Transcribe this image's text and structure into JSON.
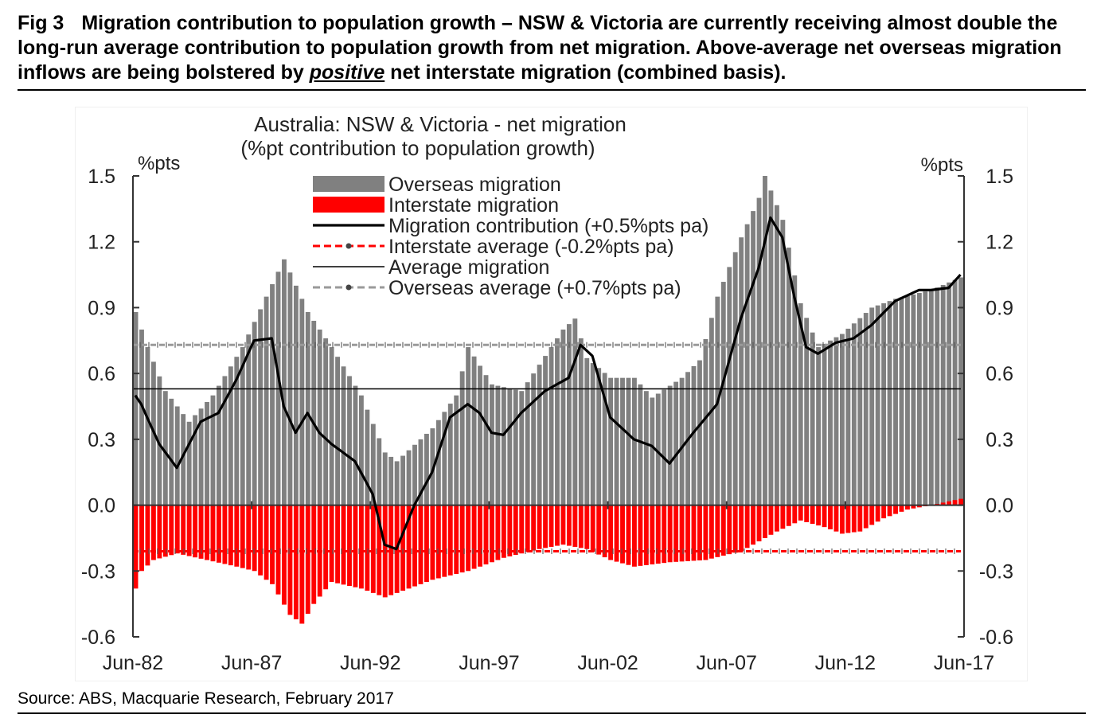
{
  "figure": {
    "label": "Fig 3",
    "title_part1": "Migration contribution to population growth – NSW & Victoria are currently receiving almost double the long-run average contribution to population growth from net migration. Above-average net overseas migration inflows are being bolstered by ",
    "title_emphasis": "positive",
    "title_part2": " net interstate migration (combined basis)."
  },
  "source": "Source: ABS,  Macquarie Research, February 2017",
  "colors": {
    "overseas": "#808080",
    "interstate": "#ff0000",
    "contribution": "#000000",
    "interstate_avg": "#ff0000",
    "average": "#000000",
    "overseas_avg": "#808080"
  },
  "chart_data": {
    "type": "bar",
    "title": "Australia: NSW & Victoria - net migration",
    "subtitle": "(%pt contribution to population growth)",
    "ylabel_left": "%pts",
    "ylabel_right": "%pts",
    "ylim": [
      -0.6,
      1.5
    ],
    "yticks": [
      "1.5",
      "1.2",
      "0.9",
      "0.6",
      "0.3",
      "0.0",
      "-0.3",
      "-0.6"
    ],
    "x_start": 1982.5,
    "x_end": 2017.5,
    "x_step": 0.25,
    "xtick_labels": [
      "Jun-82",
      "Jun-87",
      "Jun-92",
      "Jun-97",
      "Jun-02",
      "Jun-07",
      "Jun-12",
      "Jun-17"
    ],
    "legend": [
      {
        "key": "overseas",
        "label": "Overseas migration",
        "style": "bar"
      },
      {
        "key": "interstate",
        "label": "Interstate migration",
        "style": "bar"
      },
      {
        "key": "contribution",
        "label": "Migration contribution (+0.5%pts pa)",
        "style": "line"
      },
      {
        "key": "interstate_avg",
        "label": "Interstate average (-0.2%pts pa)",
        "style": "dashed"
      },
      {
        "key": "average",
        "label": "Average migration",
        "style": "thin"
      },
      {
        "key": "overseas_avg",
        "label": "Overseas average (+0.7%pts pa)",
        "style": "dashed"
      }
    ],
    "reference_lines": {
      "overseas_avg": 0.73,
      "average": 0.53,
      "interstate_avg": -0.21
    },
    "series": [
      {
        "name": "Overseas migration",
        "key": "overseas",
        "type": "bar",
        "knots_x": [
          1982.5,
          1983.0,
          1983.75,
          1984.75,
          1985.75,
          1987.0,
          1988.0,
          1988.75,
          1989.75,
          1990.75,
          1992.0,
          1993.0,
          1993.5,
          1995.0,
          1996.0,
          1996.5,
          1997.5,
          1998.75,
          1999.75,
          2000.5,
          2001.0,
          2001.5,
          2002.5,
          2003.5,
          2004.25,
          2005.5,
          2006.25,
          2007.0,
          2008.0,
          2008.75,
          2009.0,
          2009.75,
          2010.5,
          2011.25,
          2012.25,
          2013.5,
          2014.5,
          2016.0,
          2017.3
        ],
        "knots_y": [
          0.88,
          0.72,
          0.52,
          0.38,
          0.5,
          0.72,
          0.95,
          1.12,
          0.88,
          0.72,
          0.5,
          0.24,
          0.2,
          0.35,
          0.5,
          0.72,
          0.55,
          0.52,
          0.68,
          0.8,
          0.85,
          0.67,
          0.58,
          0.58,
          0.49,
          0.58,
          0.66,
          0.95,
          1.22,
          1.4,
          1.5,
          1.3,
          0.92,
          0.72,
          0.78,
          0.9,
          0.94,
          0.98,
          1.04
        ]
      },
      {
        "name": "Interstate migration",
        "key": "interstate",
        "type": "bar",
        "knots_x": [
          1982.5,
          1982.75,
          1983.25,
          1984.25,
          1985.5,
          1986.75,
          1987.5,
          1988.25,
          1989.0,
          1989.5,
          1990.0,
          1990.75,
          1992.0,
          1993.0,
          1994.0,
          1995.0,
          1996.5,
          1998.0,
          1999.5,
          2000.5,
          2001.5,
          2002.5,
          2003.5,
          2005.0,
          2006.5,
          2008.0,
          2009.5,
          2010.5,
          2011.5,
          2012.25,
          2013.0,
          2014.0,
          2015.0,
          2016.0,
          2017.3
        ],
        "knots_y": [
          -0.38,
          -0.3,
          -0.25,
          -0.22,
          -0.25,
          -0.28,
          -0.3,
          -0.36,
          -0.5,
          -0.54,
          -0.45,
          -0.35,
          -0.38,
          -0.42,
          -0.38,
          -0.34,
          -0.3,
          -0.24,
          -0.2,
          -0.18,
          -0.2,
          -0.25,
          -0.28,
          -0.26,
          -0.25,
          -0.21,
          -0.12,
          -0.07,
          -0.1,
          -0.13,
          -0.12,
          -0.06,
          -0.02,
          0.0,
          0.03
        ]
      },
      {
        "name": "Migration contribution",
        "key": "contribution",
        "type": "line",
        "knots_x": [
          1982.5,
          1982.75,
          1983.5,
          1984.25,
          1985.25,
          1986.0,
          1986.75,
          1987.5,
          1988.25,
          1988.75,
          1989.25,
          1989.75,
          1990.25,
          1990.75,
          1991.75,
          1992.5,
          1993.0,
          1993.5,
          1994.25,
          1995.0,
          1995.75,
          1996.5,
          1997.0,
          1997.5,
          1998.0,
          1998.75,
          1999.75,
          2000.75,
          2001.25,
          2001.75,
          2002.5,
          2003.5,
          2004.25,
          2005.0,
          2006.0,
          2007.0,
          2008.0,
          2008.75,
          2009.25,
          2009.75,
          2010.25,
          2010.75,
          2011.25,
          2012.0,
          2012.75,
          2013.5,
          2014.5,
          2015.5,
          2016.0,
          2016.75,
          2017.25
        ],
        "knots_y": [
          0.5,
          0.46,
          0.28,
          0.17,
          0.38,
          0.42,
          0.57,
          0.75,
          0.76,
          0.45,
          0.33,
          0.42,
          0.33,
          0.28,
          0.2,
          0.05,
          -0.18,
          -0.2,
          0.0,
          0.15,
          0.4,
          0.46,
          0.42,
          0.33,
          0.32,
          0.42,
          0.52,
          0.58,
          0.73,
          0.68,
          0.4,
          0.3,
          0.27,
          0.19,
          0.33,
          0.46,
          0.85,
          1.08,
          1.31,
          1.22,
          0.95,
          0.72,
          0.69,
          0.74,
          0.76,
          0.82,
          0.93,
          0.98,
          0.98,
          0.99,
          1.05
        ]
      }
    ]
  }
}
